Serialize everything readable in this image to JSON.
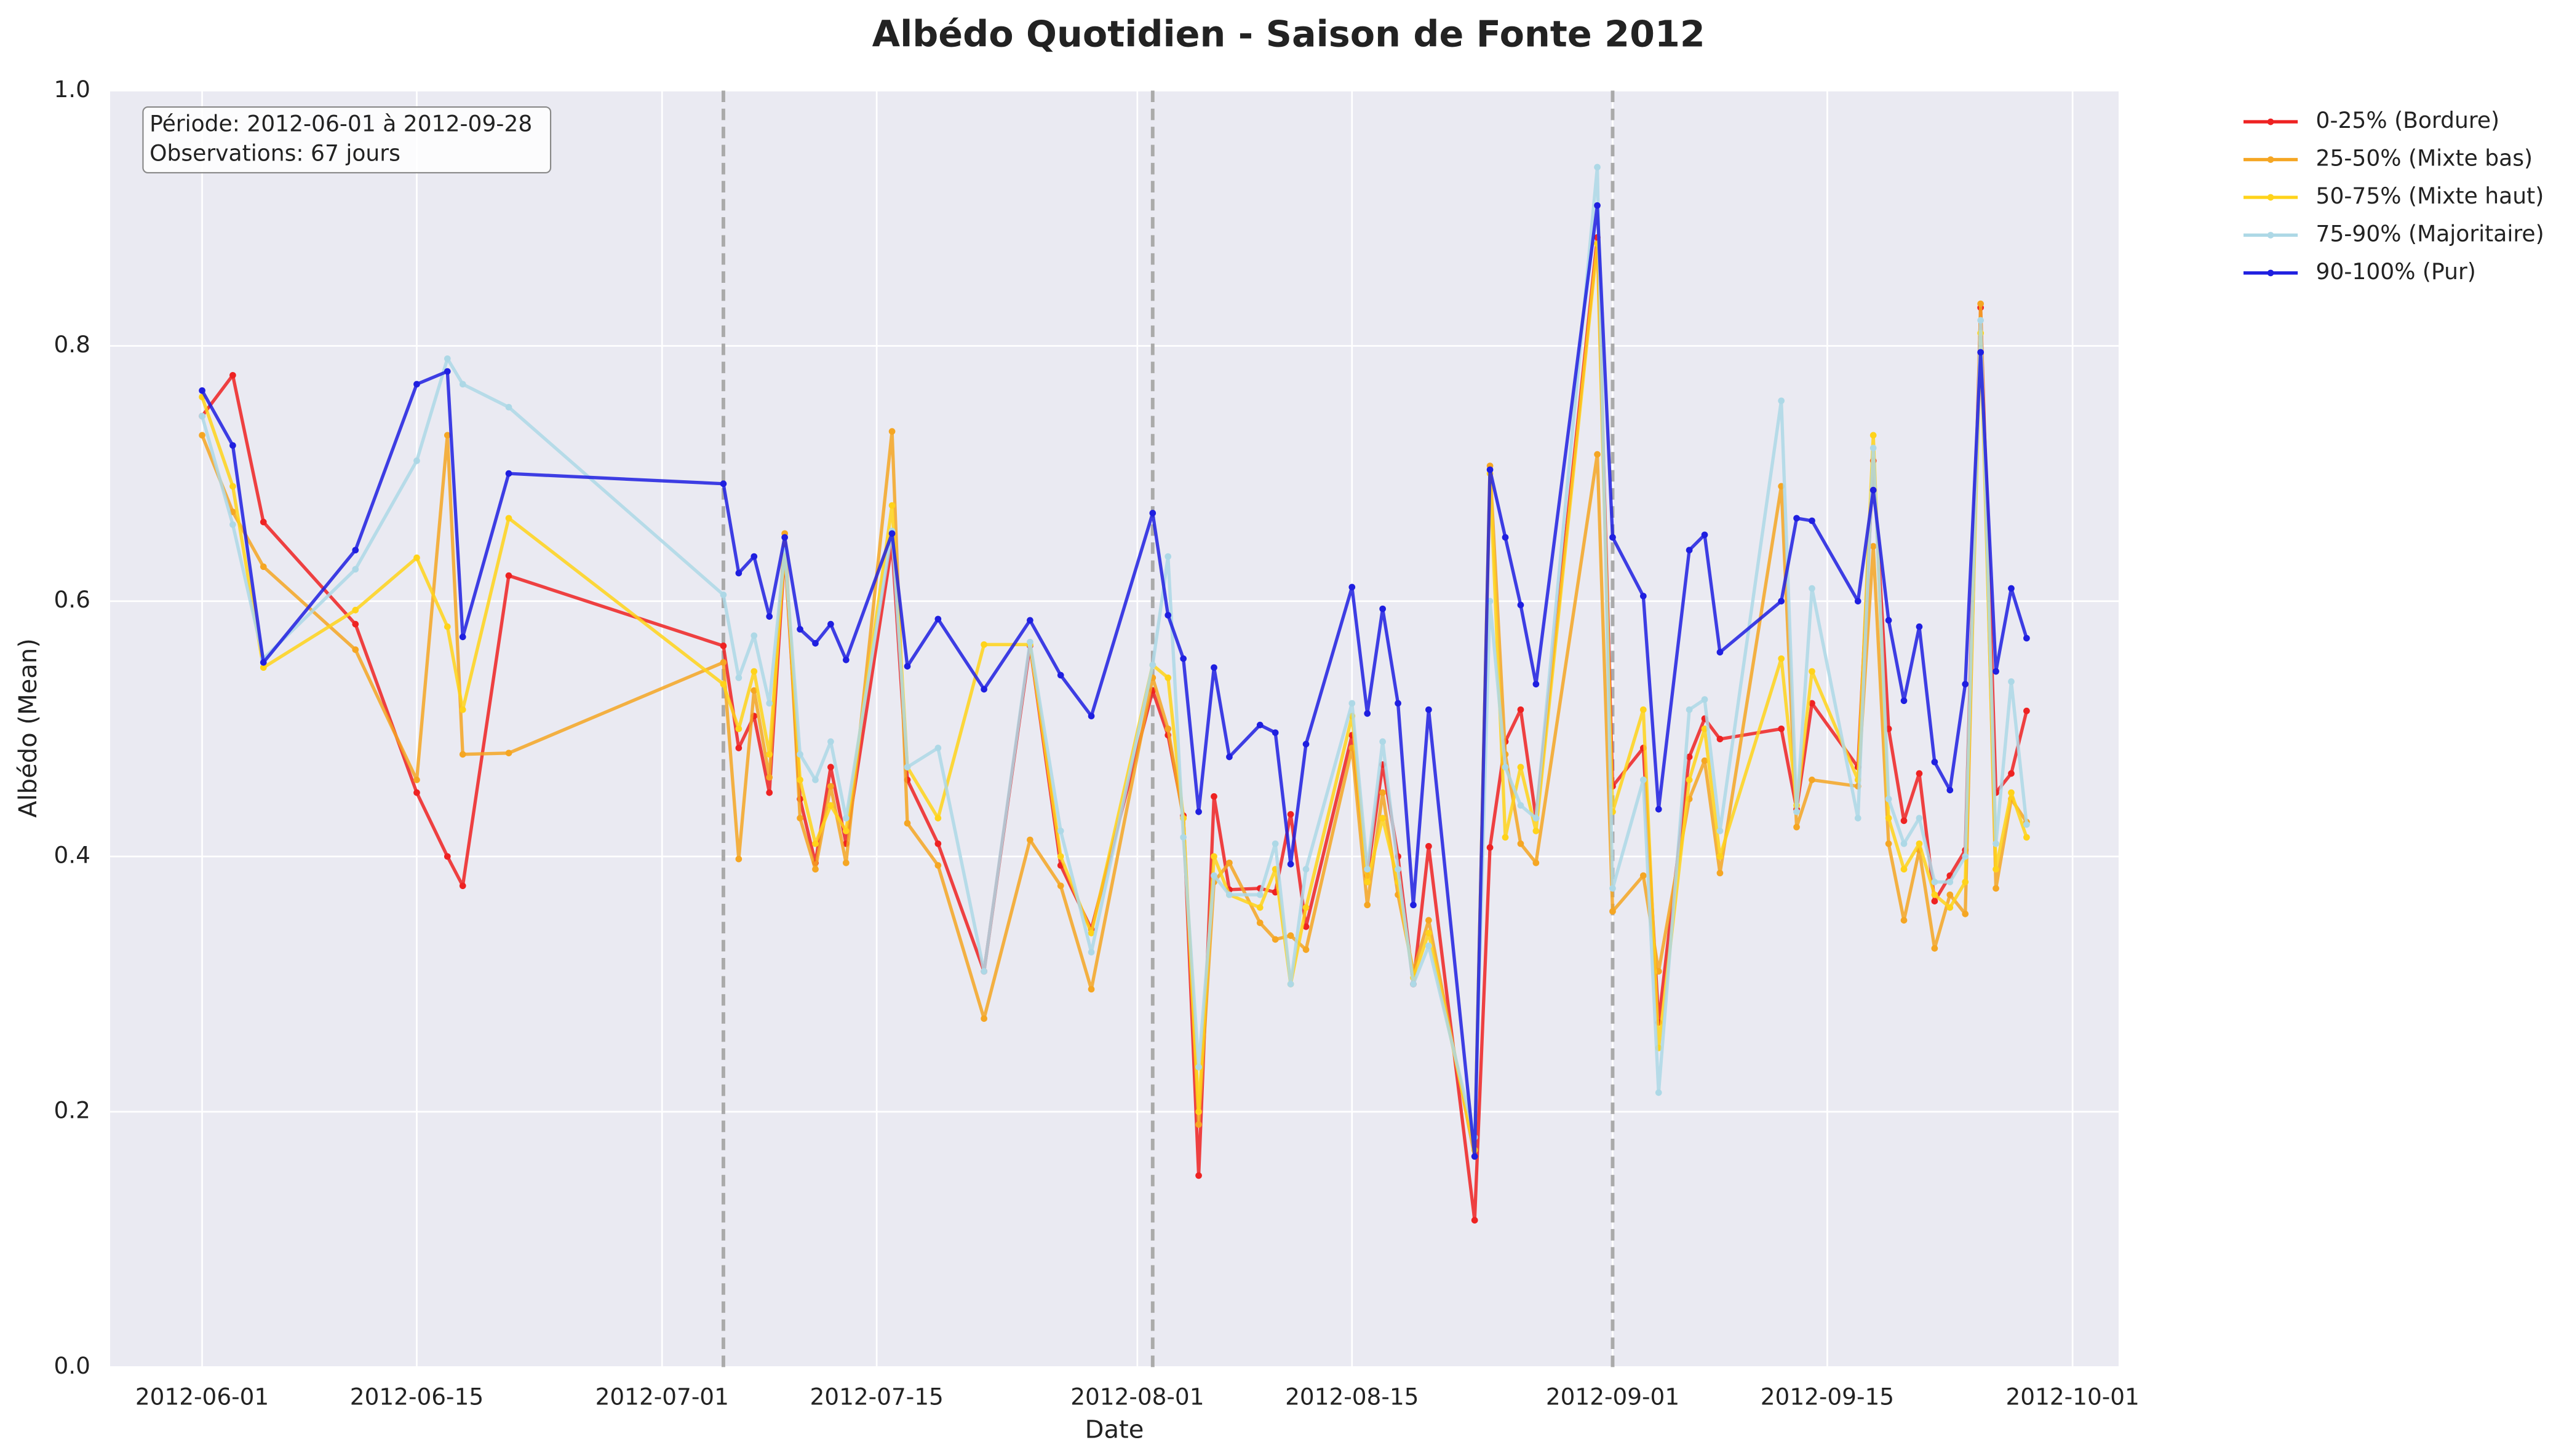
{
  "chart_data": {
    "type": "line",
    "title": "Albédo Quotidien - Saison de Fonte 2012",
    "xlabel": "Date",
    "ylabel": "Albédo (Mean)",
    "annotations": [
      "Période: 2012-06-01 à 2012-09-28",
      "Observations: 67 jours"
    ],
    "legend": "outside upper right",
    "grid": true,
    "vlines": {
      "color": "#aaaaaa",
      "style": "dashed",
      "x": [
        "2012-07-05",
        "2012-08-02",
        "2012-09-01"
      ]
    },
    "xlim": [
      "2012-05-26",
      "2012-10-04"
    ],
    "xticks": [
      "2012-06-01",
      "2012-06-15",
      "2012-07-01",
      "2012-07-15",
      "2012-08-01",
      "2012-08-15",
      "2012-09-01",
      "2012-09-15",
      "2012-10-01"
    ],
    "ylim": [
      0,
      1
    ],
    "yticks": [
      {
        "value": 0,
        "label": "0.0"
      },
      0.2,
      0.4,
      0.6,
      0.8,
      {
        "value": 1,
        "label": "1.0"
      }
    ],
    "x": [
      "2012-06-01",
      "2012-06-03",
      "2012-06-05",
      "2012-06-11",
      "2012-06-15",
      "2012-06-17",
      "2012-06-18",
      "2012-06-21",
      "2012-07-05",
      "2012-07-06",
      "2012-07-07",
      "2012-07-08",
      "2012-07-09",
      "2012-07-10",
      "2012-07-11",
      "2012-07-12",
      "2012-07-13",
      "2012-07-16",
      "2012-07-17",
      "2012-07-19",
      "2012-07-22",
      "2012-07-25",
      "2012-07-27",
      "2012-07-29",
      "2012-08-02",
      "2012-08-03",
      "2012-08-04",
      "2012-08-05",
      "2012-08-06",
      "2012-08-07",
      "2012-08-09",
      "2012-08-10",
      "2012-08-11",
      "2012-08-12",
      "2012-08-15",
      "2012-08-16",
      "2012-08-17",
      "2012-08-18",
      "2012-08-19",
      "2012-08-20",
      "2012-08-23",
      "2012-08-24",
      "2012-08-25",
      "2012-08-26",
      "2012-08-27",
      "2012-08-31",
      "2012-09-01",
      "2012-09-03",
      "2012-09-04",
      "2012-09-06",
      "2012-09-07",
      "2012-09-08",
      "2012-09-12",
      "2012-09-13",
      "2012-09-14",
      "2012-09-17",
      "2012-09-18",
      "2012-09-19",
      "2012-09-20",
      "2012-09-21",
      "2012-09-22",
      "2012-09-23",
      "2012-09-24",
      "2012-09-25",
      "2012-09-26",
      "2012-09-27",
      "2012-09-28"
    ],
    "series": [
      {
        "name": "0-25% (Bordure)",
        "color": "#ee2222",
        "values": [
          0.745,
          0.777,
          0.662,
          0.582,
          0.45,
          0.4,
          0.377,
          0.62,
          0.565,
          0.485,
          0.51,
          0.45,
          0.64,
          0.445,
          0.395,
          0.47,
          0.41,
          0.645,
          0.46,
          0.41,
          0.31,
          0.565,
          0.393,
          0.343,
          0.53,
          0.495,
          0.432,
          0.15,
          0.447,
          0.374,
          0.375,
          0.372,
          0.433,
          0.345,
          0.495,
          0.385,
          0.472,
          0.4,
          0.3,
          0.408,
          0.115,
          0.407,
          0.49,
          0.515,
          0.43,
          0.885,
          0.455,
          0.485,
          0.27,
          0.478,
          0.508,
          0.492,
          0.5,
          0.437,
          0.52,
          0.47,
          0.71,
          0.5,
          0.428,
          0.465,
          0.365,
          0.385,
          0.405,
          0.83,
          0.45,
          0.465,
          0.514
        ]
      },
      {
        "name": "25-50% (Mixte bas)",
        "color": "#f5a623",
        "values": [
          0.73,
          0.67,
          0.627,
          0.562,
          0.46,
          0.73,
          0.48,
          0.481,
          0.552,
          0.398,
          0.53,
          0.462,
          0.653,
          0.43,
          0.39,
          0.455,
          0.395,
          0.733,
          0.426,
          0.393,
          0.273,
          0.413,
          0.377,
          0.296,
          0.54,
          0.5,
          0.43,
          0.19,
          0.38,
          0.395,
          0.348,
          0.335,
          0.338,
          0.327,
          0.485,
          0.362,
          0.45,
          0.37,
          0.31,
          0.35,
          0.165,
          0.706,
          0.48,
          0.41,
          0.395,
          0.715,
          0.357,
          0.385,
          0.31,
          0.445,
          0.475,
          0.387,
          0.69,
          0.423,
          0.46,
          0.455,
          0.643,
          0.41,
          0.35,
          0.405,
          0.328,
          0.37,
          0.355,
          0.833,
          0.375,
          0.445,
          0.427
        ]
      },
      {
        "name": "50-75% (Mixte haut)",
        "color": "#ffd31a",
        "values": [
          0.76,
          0.69,
          0.548,
          0.593,
          0.634,
          0.58,
          0.515,
          0.665,
          0.535,
          0.5,
          0.545,
          0.48,
          0.64,
          0.46,
          0.41,
          0.44,
          0.42,
          0.675,
          0.47,
          0.43,
          0.566,
          0.566,
          0.4,
          0.34,
          0.55,
          0.54,
          0.43,
          0.2,
          0.4,
          0.37,
          0.36,
          0.39,
          0.3,
          0.36,
          0.51,
          0.38,
          0.43,
          0.38,
          0.305,
          0.34,
          0.17,
          0.7,
          0.415,
          0.47,
          0.42,
          0.88,
          0.435,
          0.515,
          0.25,
          0.46,
          0.5,
          0.4,
          0.555,
          0.44,
          0.545,
          0.46,
          0.73,
          0.43,
          0.39,
          0.41,
          0.37,
          0.36,
          0.38,
          0.81,
          0.39,
          0.45,
          0.415
        ]
      },
      {
        "name": "75-90% (Majoritaire)",
        "color": "#add8e6",
        "values": [
          0.745,
          0.66,
          0.555,
          0.625,
          0.71,
          0.79,
          0.77,
          0.752,
          0.605,
          0.54,
          0.573,
          0.52,
          0.64,
          0.48,
          0.46,
          0.49,
          0.43,
          0.655,
          0.47,
          0.485,
          0.31,
          0.568,
          0.42,
          0.325,
          0.55,
          0.635,
          0.415,
          0.235,
          0.385,
          0.37,
          0.37,
          0.41,
          0.3,
          0.39,
          0.52,
          0.39,
          0.49,
          0.39,
          0.3,
          0.33,
          0.18,
          0.6,
          0.47,
          0.44,
          0.43,
          0.94,
          0.375,
          0.46,
          0.215,
          0.515,
          0.523,
          0.42,
          0.757,
          0.435,
          0.61,
          0.43,
          0.72,
          0.445,
          0.41,
          0.43,
          0.38,
          0.38,
          0.4,
          0.82,
          0.41,
          0.537,
          0.425
        ]
      },
      {
        "name": "90-100% (Pur)",
        "color": "#1f1fe0",
        "values": [
          0.765,
          0.722,
          0.552,
          0.64,
          0.77,
          0.78,
          0.572,
          0.7,
          0.692,
          0.622,
          0.635,
          0.588,
          0.65,
          0.578,
          0.567,
          0.582,
          0.554,
          0.653,
          0.549,
          0.586,
          0.531,
          0.585,
          0.542,
          0.51,
          0.669,
          0.589,
          0.555,
          0.435,
          0.548,
          0.478,
          0.503,
          0.497,
          0.394,
          0.488,
          0.611,
          0.512,
          0.594,
          0.52,
          0.362,
          0.515,
          0.165,
          0.703,
          0.65,
          0.597,
          0.535,
          0.91,
          0.65,
          0.604,
          0.437,
          0.64,
          0.652,
          0.56,
          0.6,
          0.665,
          0.663,
          0.6,
          0.687,
          0.585,
          0.522,
          0.58,
          0.474,
          0.452,
          0.535,
          0.795,
          0.545,
          0.61,
          0.571
        ]
      }
    ]
  }
}
